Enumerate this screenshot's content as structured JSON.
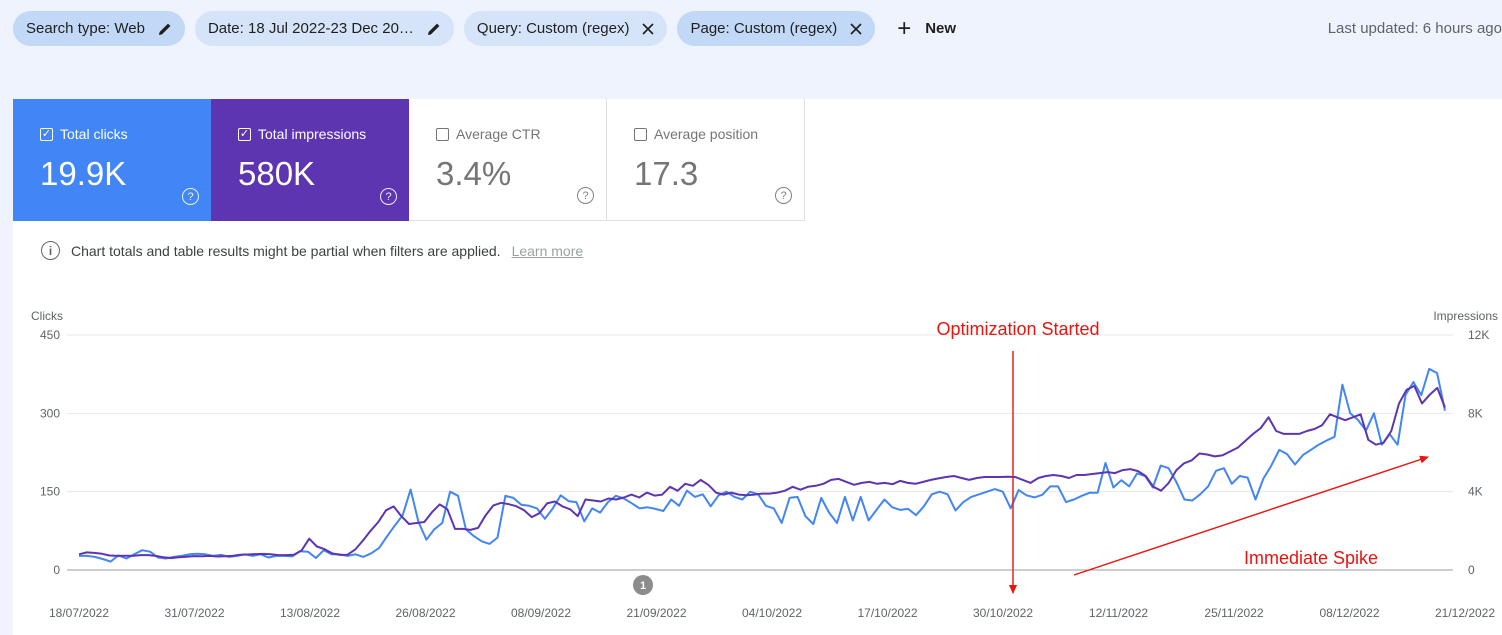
{
  "filters": [
    {
      "label": "Search type: Web",
      "icon": "pencil-icon",
      "style": "dark"
    },
    {
      "label": "Date: 18 Jul 2022-23 Dec 20…",
      "icon": "pencil-icon",
      "style": "light"
    },
    {
      "label": "Query: Custom (regex)",
      "icon": "close-icon",
      "style": "light"
    },
    {
      "label": "Page: Custom (regex)",
      "icon": "close-icon",
      "style": "dark"
    }
  ],
  "new_label": "New",
  "last_updated": "Last updated: 6 hours ago",
  "metrics": [
    {
      "label": "Total clicks",
      "value": "19.9K",
      "checked": true,
      "color": "#4285f4"
    },
    {
      "label": "Total impressions",
      "value": "580K",
      "checked": true,
      "color": "#5e35b1"
    },
    {
      "label": "Average CTR",
      "value": "3.4%",
      "checked": false
    },
    {
      "label": "Average position",
      "value": "17.3",
      "checked": false
    }
  ],
  "notice": {
    "text": "Chart totals and table results might be partial when filters are applied.",
    "link": "Learn more"
  },
  "chart_data": {
    "type": "line",
    "y_left_label": "Clicks",
    "y_right_label": "Impressions",
    "y_left_ticks": [
      "450",
      "300",
      "150",
      "0"
    ],
    "y_right_ticks": [
      "12K",
      "8K",
      "4K",
      "0"
    ],
    "ylim_left": [
      0,
      450
    ],
    "ylim_right": [
      0,
      12000
    ],
    "x_ticks": [
      "18/07/2022",
      "31/07/2022",
      "13/08/2022",
      "26/08/2022",
      "08/09/2022",
      "21/09/2022",
      "04/10/2022",
      "17/10/2022",
      "30/10/2022",
      "12/11/2022",
      "25/11/2022",
      "08/12/2022",
      "21/12/2022"
    ],
    "event_marker": "1",
    "grid": true,
    "annotations": [
      {
        "text": "Optimization Started"
      },
      {
        "text": "Immediate Spike"
      }
    ],
    "colors": {
      "clicks": "#4285f4",
      "impressions": "#5e35b1",
      "annotation": "#e8150f"
    },
    "series": [
      {
        "name": "Clicks",
        "axis": "left",
        "values": [
          27,
          27,
          25,
          21,
          16,
          28,
          22,
          30,
          38,
          35,
          24,
          22,
          25,
          27,
          30,
          31,
          30,
          27,
          29,
          25,
          27,
          30,
          27,
          30,
          24,
          27,
          27,
          26,
          36,
          35,
          23,
          38,
          30,
          30,
          27,
          30,
          25,
          32,
          42,
          64,
          85,
          105,
          154,
          92,
          58,
          78,
          90,
          150,
          142,
          78,
          65,
          55,
          50,
          62,
          142,
          138,
          125,
          123,
          118,
          98,
          118,
          143,
          132,
          130,
          93,
          118,
          110,
          130,
          142,
          137,
          128,
          118,
          120,
          117,
          113,
          135,
          123,
          152,
          140,
          145,
          122,
          143,
          150,
          140,
          135,
          150,
          145,
          123,
          118,
          90,
          138,
          140,
          103,
          88,
          138,
          110,
          90,
          140,
          95,
          140,
          95,
          115,
          135,
          120,
          115,
          117,
          105,
          122,
          145,
          150,
          145,
          114,
          130,
          140,
          145,
          150,
          155,
          150,
          118,
          153,
          143,
          139,
          144,
          160,
          160,
          130,
          135,
          142,
          148,
          148,
          205,
          158,
          172,
          160,
          185,
          180,
          158,
          200,
          195,
          168,
          135,
          133,
          145,
          160,
          190,
          195,
          165,
          180,
          177,
          135,
          175,
          200,
          230,
          222,
          202,
          220,
          230,
          240,
          248,
          255,
          355,
          300,
          287,
          267,
          300,
          240,
          260,
          240,
          335,
          360,
          335,
          385,
          377,
          305
        ]
      },
      {
        "name": "Impressions",
        "axis": "right",
        "values": [
          800,
          900,
          875,
          825,
          740,
          720,
          730,
          720,
          760,
          760,
          720,
          650,
          610,
          650,
          680,
          710,
          700,
          720,
          690,
          700,
          720,
          780,
          790,
          810,
          820,
          800,
          760,
          760,
          780,
          1000,
          1600,
          1200,
          1060,
          850,
          770,
          780,
          1050,
          1500,
          2000,
          2450,
          3050,
          3250,
          2750,
          2350,
          2400,
          2450,
          2950,
          3350,
          3100,
          2100,
          2100,
          2050,
          2150,
          2800,
          3300,
          3430,
          3360,
          3260,
          3050,
          2700,
          2900,
          3400,
          3500,
          3250,
          3100,
          2750,
          3600,
          3550,
          3500,
          3650,
          3600,
          3700,
          3850,
          3700,
          3950,
          3800,
          3850,
          4250,
          4050,
          4400,
          4300,
          4600,
          4350,
          3950,
          3850,
          3950,
          3850,
          3820,
          3850,
          3900,
          3900,
          3950,
          4050,
          4250,
          4100,
          4250,
          4300,
          4400,
          4600,
          4650,
          4500,
          4350,
          4450,
          4500,
          4400,
          4450,
          4380,
          4550,
          4450,
          4400,
          4500,
          4600,
          4680,
          4750,
          4800,
          4700,
          4600,
          4700,
          4750,
          4750,
          4750,
          4760,
          4750,
          4600,
          4450,
          4700,
          4800,
          4850,
          4800,
          4700,
          4850,
          4850,
          4900,
          4950,
          5000,
          4950,
          5100,
          5150,
          5050,
          4800,
          4250,
          4050,
          4450,
          5100,
          5450,
          5600,
          5950,
          5900,
          5800,
          5850,
          6050,
          6250,
          6600,
          6950,
          7250,
          7800,
          7100,
          6950,
          6950,
          6950,
          7100,
          7200,
          7400,
          7950,
          7800,
          7650,
          7800,
          7950,
          6650,
          6400,
          6500,
          7100,
          8500,
          9200,
          9400,
          8500,
          8950,
          9300,
          8300
        ]
      }
    ]
  }
}
